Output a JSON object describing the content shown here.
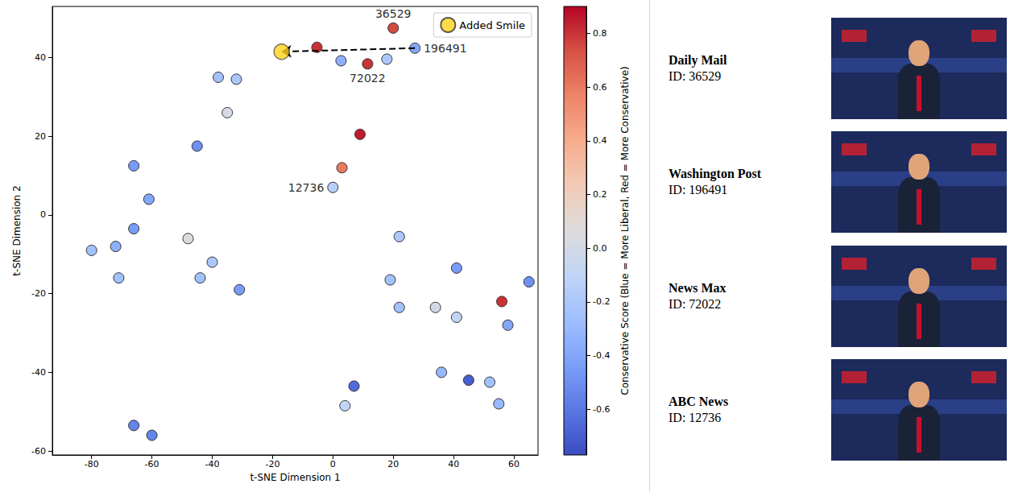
{
  "chart_data": {
    "type": "scatter",
    "xlabel": "t-SNE Dimension 1",
    "ylabel": "t-SNE Dimension 2",
    "xlim": [
      -93,
      68
    ],
    "ylim": [
      -61,
      53
    ],
    "xticks": [
      -80,
      -60,
      -40,
      -20,
      0,
      20,
      40,
      60
    ],
    "yticks": [
      -60,
      -40,
      -20,
      0,
      20,
      40
    ],
    "grid": false,
    "legend": "upper right",
    "points": [
      {
        "x": 20,
        "y": 47.5,
        "score": 0.75,
        "label": "36529"
      },
      {
        "x": 27.2,
        "y": 42.4,
        "score": -0.4,
        "label": "196491"
      },
      {
        "x": 11.5,
        "y": 38.4,
        "score": 0.8,
        "label": "72022"
      },
      {
        "x": 0,
        "y": 7,
        "score": -0.15,
        "label": "12736"
      },
      {
        "x": -5.3,
        "y": 42.6,
        "score": 0.8
      },
      {
        "x": 2.7,
        "y": 39.2,
        "score": -0.35
      },
      {
        "x": 17.9,
        "y": 39.6,
        "score": -0.2
      },
      {
        "x": -38,
        "y": 35,
        "score": -0.25
      },
      {
        "x": -32,
        "y": 34.5,
        "score": -0.2
      },
      {
        "x": -35,
        "y": 26,
        "score": 0.02
      },
      {
        "x": 9,
        "y": 20.5,
        "score": 0.85
      },
      {
        "x": 3,
        "y": 12,
        "score": 0.6
      },
      {
        "x": -45,
        "y": 17.5,
        "score": -0.5
      },
      {
        "x": -66,
        "y": 12.5,
        "score": -0.45
      },
      {
        "x": -61,
        "y": 4,
        "score": -0.4
      },
      {
        "x": -66,
        "y": -3.5,
        "score": -0.45
      },
      {
        "x": -80,
        "y": -9,
        "score": -0.25
      },
      {
        "x": -72,
        "y": -8,
        "score": -0.35
      },
      {
        "x": -71,
        "y": -16,
        "score": -0.25
      },
      {
        "x": -48,
        "y": -6,
        "score": 0.05
      },
      {
        "x": -40,
        "y": -12,
        "score": -0.2
      },
      {
        "x": -44,
        "y": -16,
        "score": -0.25
      },
      {
        "x": -31,
        "y": -19,
        "score": -0.45
      },
      {
        "x": 22,
        "y": -5.5,
        "score": -0.2
      },
      {
        "x": 19,
        "y": -16.5,
        "score": -0.25
      },
      {
        "x": 22,
        "y": -23.5,
        "score": -0.25
      },
      {
        "x": 34,
        "y": -23.5,
        "score": 0.0
      },
      {
        "x": 41,
        "y": -13.5,
        "score": -0.45
      },
      {
        "x": 41,
        "y": -26,
        "score": -0.1
      },
      {
        "x": 56,
        "y": -22,
        "score": 0.8
      },
      {
        "x": 65,
        "y": -17,
        "score": -0.5
      },
      {
        "x": 58,
        "y": -28,
        "score": -0.4
      },
      {
        "x": 36,
        "y": -40,
        "score": -0.3
      },
      {
        "x": 45,
        "y": -42,
        "score": -0.7
      },
      {
        "x": 52,
        "y": -42.5,
        "score": -0.25
      },
      {
        "x": 55,
        "y": -48,
        "score": -0.3
      },
      {
        "x": 7,
        "y": -43.5,
        "score": -0.65
      },
      {
        "x": 4,
        "y": -48.5,
        "score": -0.1
      },
      {
        "x": -66,
        "y": -53.5,
        "score": -0.55
      },
      {
        "x": -60,
        "y": -56,
        "score": -0.55
      }
    ],
    "added": {
      "name": "Added Smile",
      "x": -17,
      "y": 41.5,
      "color": "#ffd21a"
    },
    "arrow": {
      "from": "196491",
      "to": "Added Smile",
      "line_style": "dashed",
      "color": "#000000"
    },
    "colorbar": {
      "label": "Conservative Score (Blue = More Liberal, Red = More Conservative)",
      "range": [
        -0.77,
        0.9
      ],
      "ticks": [
        -0.6,
        -0.4,
        -0.2,
        {
          "value": 0,
          "label": "0.0"
        },
        0.2,
        0.4,
        0.6,
        0.8
      ]
    },
    "panel": [
      {
        "name": "Daily Mail",
        "id": "ID: 36529"
      },
      {
        "name": "Washington Post",
        "id": "ID: 196491"
      },
      {
        "name": "News Max",
        "id": "ID: 72022"
      },
      {
        "name": "ABC News",
        "id": "ID: 12736"
      }
    ]
  }
}
